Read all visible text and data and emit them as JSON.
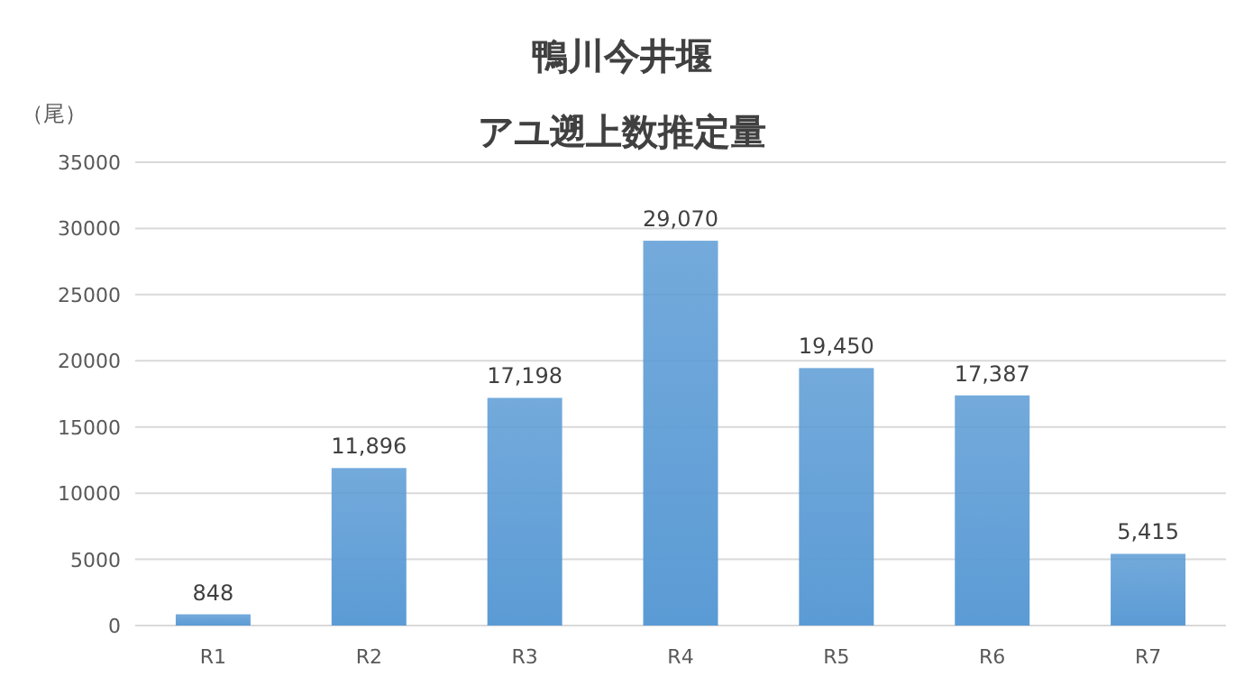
{
  "chart_data": {
    "type": "bar",
    "title": "鴨川今井堰",
    "subtitle": "アユ遡上数推定量",
    "ylabel": "（尾）",
    "categories": [
      "R1",
      "R2",
      "R3",
      "R4",
      "R5",
      "R6",
      "R7"
    ],
    "values": [
      848,
      11896,
      17198,
      29070,
      19450,
      17387,
      5415
    ],
    "value_labels": [
      "848",
      "11,896",
      "17,198",
      "29,070",
      "19,450",
      "17,387",
      "5,415"
    ],
    "color": "#5b9bd5",
    "ylim": [
      0,
      35000
    ],
    "yticks": [
      0,
      5000,
      10000,
      15000,
      20000,
      25000,
      30000,
      35000
    ],
    "grid": "y",
    "legend": false
  }
}
